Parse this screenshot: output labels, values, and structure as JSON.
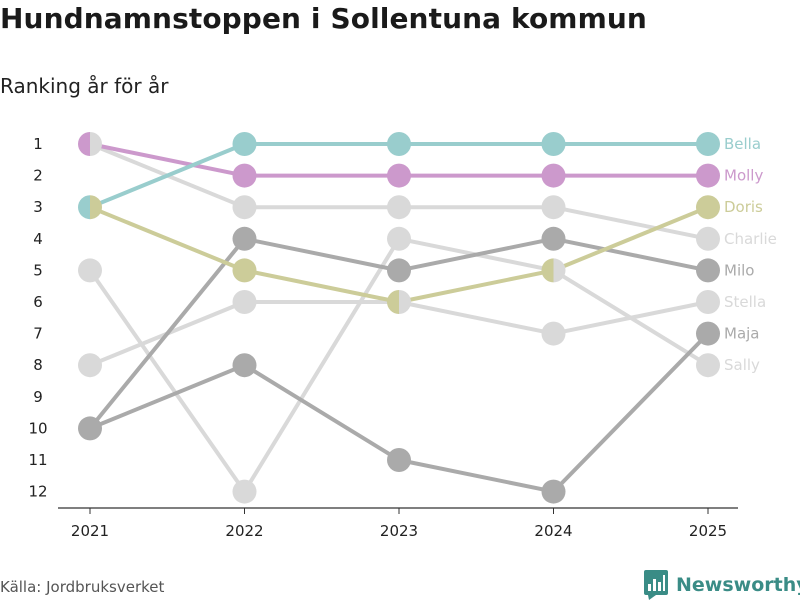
{
  "title": "Hundnamnstoppen i Sollentuna kommun",
  "subtitle": "Ranking år för år",
  "source": "Källa: Jordbruksverket",
  "brand": "Newsworthy",
  "colors": {
    "Bella": "#99cdcd",
    "Molly": "#cc99cc",
    "Doris": "#cccc99",
    "Charlie": "#d9d9d9",
    "Milo": "#aaaaaa",
    "Stella": "#d9d9d9",
    "Maja": "#aaaaaa",
    "Sally": "#d9d9d9",
    "brand": "#3a8c86"
  },
  "chart_data": {
    "type": "line",
    "title": "Hundnamnstoppen i Sollentuna kommun",
    "subtitle": "Ranking år för år",
    "xlabel": "",
    "ylabel": "",
    "x": [
      "2021",
      "2022",
      "2023",
      "2024",
      "2025"
    ],
    "y_ticks": [
      "1",
      "2",
      "3",
      "4",
      "5",
      "6",
      "7",
      "8",
      "9",
      "10",
      "11",
      "12"
    ],
    "ylim": [
      1,
      12
    ],
    "y_inverted": true,
    "series": [
      {
        "name": "Charlie",
        "values": [
          1,
          3,
          3,
          3,
          4
        ]
      },
      {
        "name": "Sally",
        "values": [
          5,
          12,
          4,
          5,
          8
        ]
      },
      {
        "name": "Stella",
        "values": [
          8,
          6,
          6,
          7,
          6
        ]
      },
      {
        "name": "Milo",
        "values": [
          10,
          4,
          5,
          4,
          5
        ]
      },
      {
        "name": "Maja",
        "values": [
          10,
          8,
          11,
          12,
          7
        ]
      },
      {
        "name": "Doris",
        "values": [
          3,
          5,
          6,
          5,
          3
        ]
      },
      {
        "name": "Molly",
        "values": [
          1,
          2,
          2,
          2,
          2
        ]
      },
      {
        "name": "Bella",
        "values": [
          3,
          1,
          1,
          1,
          1
        ]
      }
    ]
  }
}
